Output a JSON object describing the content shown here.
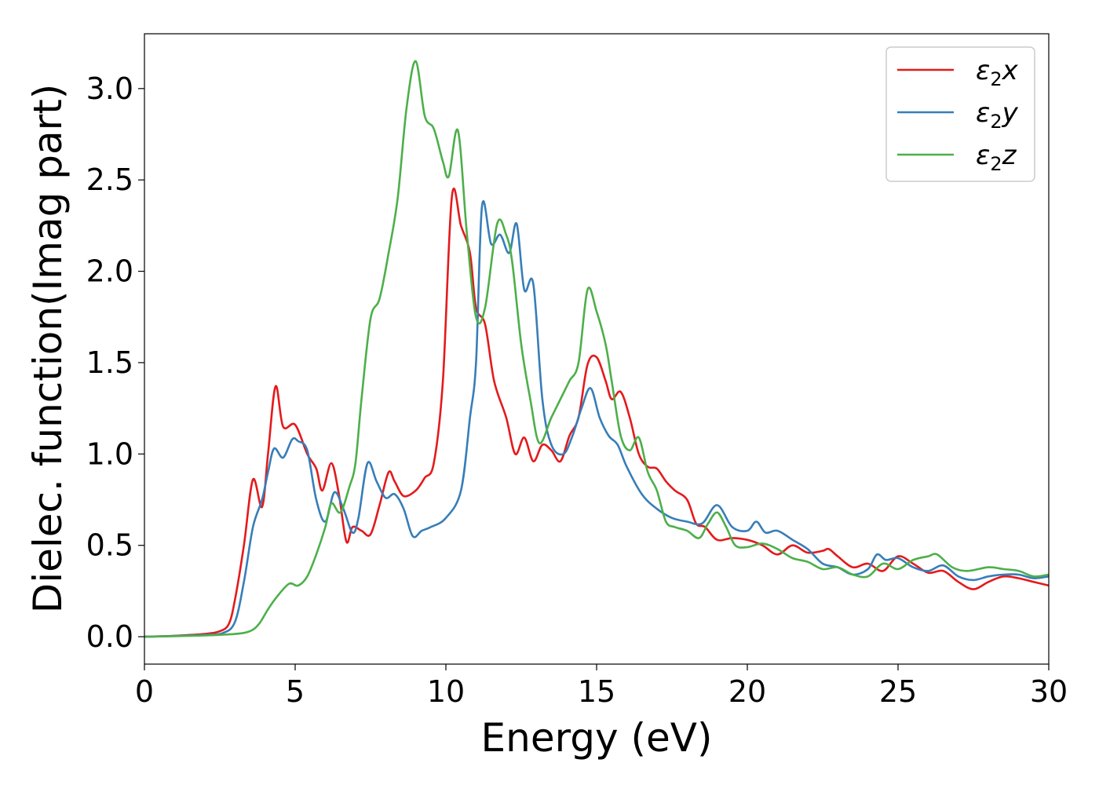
{
  "chart_data": {
    "type": "line",
    "title": "",
    "xlabel": "Energy (eV)",
    "ylabel": "Dielec. function(Imag part)",
    "xlim": [
      0,
      30
    ],
    "ylim": [
      -0.15,
      3.3
    ],
    "xticks": [
      "0",
      "5",
      "10",
      "15",
      "20",
      "25",
      "30"
    ],
    "xtick_values": [
      0,
      5,
      10,
      15,
      20,
      25,
      30
    ],
    "yticks": [
      "0.0",
      "0.5",
      "1.0",
      "1.5",
      "2.0",
      "2.5",
      "3.0"
    ],
    "ytick_values": [
      0,
      0.5,
      1.0,
      1.5,
      2.0,
      2.5,
      3.0
    ],
    "grid": false,
    "legend_position": "top-right",
    "series": [
      {
        "name": "ε₂x",
        "legend_base": "ε",
        "legend_sub": "2",
        "legend_suffix": "x",
        "color": "#e41a1c",
        "points": [
          [
            0,
            0
          ],
          [
            1,
            0.005
          ],
          [
            2,
            0.015
          ],
          [
            2.5,
            0.03
          ],
          [
            2.8,
            0.07
          ],
          [
            3.0,
            0.2
          ],
          [
            3.3,
            0.5
          ],
          [
            3.6,
            0.86
          ],
          [
            3.9,
            0.71
          ],
          [
            4.1,
            1.0
          ],
          [
            4.35,
            1.37
          ],
          [
            4.6,
            1.15
          ],
          [
            5.0,
            1.16
          ],
          [
            5.4,
            1.0
          ],
          [
            5.7,
            0.92
          ],
          [
            5.9,
            0.8
          ],
          [
            6.2,
            0.95
          ],
          [
            6.45,
            0.78
          ],
          [
            6.7,
            0.52
          ],
          [
            6.9,
            0.6
          ],
          [
            7.2,
            0.58
          ],
          [
            7.5,
            0.56
          ],
          [
            7.8,
            0.72
          ],
          [
            8.1,
            0.9
          ],
          [
            8.3,
            0.85
          ],
          [
            8.6,
            0.77
          ],
          [
            9.0,
            0.8
          ],
          [
            9.3,
            0.87
          ],
          [
            9.6,
            0.95
          ],
          [
            9.9,
            1.4
          ],
          [
            10.2,
            2.41
          ],
          [
            10.5,
            2.25
          ],
          [
            10.8,
            2.1
          ],
          [
            11.0,
            1.8
          ],
          [
            11.3,
            1.71
          ],
          [
            11.6,
            1.4
          ],
          [
            12.0,
            1.2
          ],
          [
            12.3,
            1.0
          ],
          [
            12.6,
            1.09
          ],
          [
            12.9,
            0.96
          ],
          [
            13.2,
            1.05
          ],
          [
            13.5,
            1.02
          ],
          [
            13.8,
            0.96
          ],
          [
            14.1,
            1.1
          ],
          [
            14.4,
            1.2
          ],
          [
            14.7,
            1.49
          ],
          [
            15.0,
            1.53
          ],
          [
            15.3,
            1.4
          ],
          [
            15.5,
            1.3
          ],
          [
            15.8,
            1.34
          ],
          [
            16.1,
            1.2
          ],
          [
            16.4,
            1.0
          ],
          [
            16.7,
            0.93
          ],
          [
            17.0,
            0.92
          ],
          [
            17.3,
            0.85
          ],
          [
            17.6,
            0.8
          ],
          [
            18.0,
            0.75
          ],
          [
            18.3,
            0.62
          ],
          [
            18.6,
            0.6
          ],
          [
            19.0,
            0.53
          ],
          [
            19.5,
            0.54
          ],
          [
            20.0,
            0.53
          ],
          [
            20.5,
            0.5
          ],
          [
            21.0,
            0.45
          ],
          [
            21.5,
            0.5
          ],
          [
            22.0,
            0.46
          ],
          [
            22.5,
            0.47
          ],
          [
            22.7,
            0.48
          ],
          [
            23.0,
            0.44
          ],
          [
            23.5,
            0.38
          ],
          [
            24.0,
            0.4
          ],
          [
            24.5,
            0.36
          ],
          [
            25.0,
            0.44
          ],
          [
            25.5,
            0.4
          ],
          [
            26.0,
            0.35
          ],
          [
            26.5,
            0.36
          ],
          [
            27.0,
            0.3
          ],
          [
            27.5,
            0.26
          ],
          [
            28.0,
            0.3
          ],
          [
            28.5,
            0.33
          ],
          [
            29.0,
            0.32
          ],
          [
            29.5,
            0.3
          ],
          [
            30,
            0.28
          ]
        ]
      },
      {
        "name": "ε₂y",
        "legend_base": "ε",
        "legend_sub": "2",
        "legend_suffix": "y",
        "color": "#377eb8",
        "points": [
          [
            0,
            0
          ],
          [
            1,
            0.004
          ],
          [
            2,
            0.01
          ],
          [
            2.6,
            0.02
          ],
          [
            3.0,
            0.08
          ],
          [
            3.3,
            0.3
          ],
          [
            3.6,
            0.6
          ],
          [
            3.9,
            0.75
          ],
          [
            4.1,
            0.9
          ],
          [
            4.3,
            1.03
          ],
          [
            4.6,
            0.98
          ],
          [
            4.9,
            1.08
          ],
          [
            5.1,
            1.07
          ],
          [
            5.4,
            1.02
          ],
          [
            5.7,
            0.75
          ],
          [
            6.0,
            0.63
          ],
          [
            6.3,
            0.79
          ],
          [
            6.6,
            0.7
          ],
          [
            6.9,
            0.57
          ],
          [
            7.1,
            0.65
          ],
          [
            7.4,
            0.95
          ],
          [
            7.7,
            0.85
          ],
          [
            8.0,
            0.76
          ],
          [
            8.3,
            0.78
          ],
          [
            8.6,
            0.7
          ],
          [
            8.9,
            0.55
          ],
          [
            9.2,
            0.58
          ],
          [
            9.5,
            0.6
          ],
          [
            10.0,
            0.65
          ],
          [
            10.5,
            0.8
          ],
          [
            10.8,
            1.2
          ],
          [
            11.0,
            1.5
          ],
          [
            11.2,
            2.36
          ],
          [
            11.5,
            2.15
          ],
          [
            11.8,
            2.2
          ],
          [
            12.1,
            2.1
          ],
          [
            12.35,
            2.26
          ],
          [
            12.6,
            1.9
          ],
          [
            12.9,
            1.93
          ],
          [
            13.2,
            1.3
          ],
          [
            13.5,
            1.05
          ],
          [
            13.9,
            1.0
          ],
          [
            14.2,
            1.1
          ],
          [
            14.5,
            1.25
          ],
          [
            14.8,
            1.36
          ],
          [
            15.1,
            1.2
          ],
          [
            15.4,
            1.1
          ],
          [
            15.7,
            1.05
          ],
          [
            16.0,
            0.93
          ],
          [
            16.5,
            0.78
          ],
          [
            17.0,
            0.7
          ],
          [
            17.5,
            0.65
          ],
          [
            18.0,
            0.63
          ],
          [
            18.5,
            0.62
          ],
          [
            19.0,
            0.72
          ],
          [
            19.5,
            0.6
          ],
          [
            20.0,
            0.58
          ],
          [
            20.3,
            0.63
          ],
          [
            20.6,
            0.57
          ],
          [
            21.0,
            0.58
          ],
          [
            21.5,
            0.53
          ],
          [
            22.0,
            0.48
          ],
          [
            22.5,
            0.4
          ],
          [
            23.0,
            0.38
          ],
          [
            23.5,
            0.34
          ],
          [
            24.0,
            0.37
          ],
          [
            24.3,
            0.45
          ],
          [
            24.6,
            0.42
          ],
          [
            25.0,
            0.43
          ],
          [
            25.5,
            0.38
          ],
          [
            26.0,
            0.36
          ],
          [
            26.5,
            0.39
          ],
          [
            27.0,
            0.33
          ],
          [
            27.5,
            0.31
          ],
          [
            28.0,
            0.33
          ],
          [
            28.5,
            0.34
          ],
          [
            29.0,
            0.34
          ],
          [
            29.5,
            0.32
          ],
          [
            30,
            0.33
          ]
        ]
      },
      {
        "name": "ε₂z",
        "legend_base": "ε",
        "legend_sub": "2",
        "legend_suffix": "z",
        "color": "#4daf4a",
        "points": [
          [
            0,
            0
          ],
          [
            1,
            0.003
          ],
          [
            2,
            0.007
          ],
          [
            3.0,
            0.015
          ],
          [
            3.5,
            0.03
          ],
          [
            3.8,
            0.07
          ],
          [
            4.1,
            0.15
          ],
          [
            4.4,
            0.22
          ],
          [
            4.8,
            0.29
          ],
          [
            5.1,
            0.28
          ],
          [
            5.4,
            0.33
          ],
          [
            5.7,
            0.45
          ],
          [
            6.0,
            0.6
          ],
          [
            6.2,
            0.73
          ],
          [
            6.5,
            0.68
          ],
          [
            6.8,
            0.82
          ],
          [
            7.0,
            0.95
          ],
          [
            7.2,
            1.3
          ],
          [
            7.5,
            1.74
          ],
          [
            7.8,
            1.85
          ],
          [
            8.1,
            2.1
          ],
          [
            8.4,
            2.4
          ],
          [
            8.7,
            2.9
          ],
          [
            9.0,
            3.15
          ],
          [
            9.3,
            2.85
          ],
          [
            9.6,
            2.78
          ],
          [
            9.9,
            2.6
          ],
          [
            10.1,
            2.52
          ],
          [
            10.4,
            2.77
          ],
          [
            10.7,
            2.2
          ],
          [
            11.0,
            1.75
          ],
          [
            11.3,
            1.8
          ],
          [
            11.7,
            2.26
          ],
          [
            12.0,
            2.2
          ],
          [
            12.2,
            2.05
          ],
          [
            12.5,
            1.6
          ],
          [
            12.8,
            1.3
          ],
          [
            13.1,
            1.06
          ],
          [
            13.5,
            1.2
          ],
          [
            13.8,
            1.3
          ],
          [
            14.1,
            1.4
          ],
          [
            14.4,
            1.5
          ],
          [
            14.7,
            1.9
          ],
          [
            15.0,
            1.78
          ],
          [
            15.3,
            1.6
          ],
          [
            15.5,
            1.4
          ],
          [
            15.8,
            1.1
          ],
          [
            16.1,
            1.02
          ],
          [
            16.4,
            1.09
          ],
          [
            16.7,
            0.9
          ],
          [
            17.0,
            0.8
          ],
          [
            17.3,
            0.63
          ],
          [
            17.6,
            0.6
          ],
          [
            18.0,
            0.58
          ],
          [
            18.4,
            0.54
          ],
          [
            18.7,
            0.62
          ],
          [
            19.0,
            0.68
          ],
          [
            19.3,
            0.6
          ],
          [
            19.6,
            0.5
          ],
          [
            20.0,
            0.49
          ],
          [
            20.5,
            0.51
          ],
          [
            21.0,
            0.48
          ],
          [
            21.5,
            0.43
          ],
          [
            22.0,
            0.41
          ],
          [
            22.5,
            0.37
          ],
          [
            23.0,
            0.38
          ],
          [
            23.5,
            0.34
          ],
          [
            24.0,
            0.33
          ],
          [
            24.5,
            0.4
          ],
          [
            25.0,
            0.37
          ],
          [
            25.5,
            0.42
          ],
          [
            26.0,
            0.44
          ],
          [
            26.3,
            0.45
          ],
          [
            26.8,
            0.38
          ],
          [
            27.3,
            0.36
          ],
          [
            28.0,
            0.38
          ],
          [
            28.5,
            0.37
          ],
          [
            29.0,
            0.36
          ],
          [
            29.5,
            0.33
          ],
          [
            30,
            0.34
          ]
        ]
      }
    ]
  }
}
